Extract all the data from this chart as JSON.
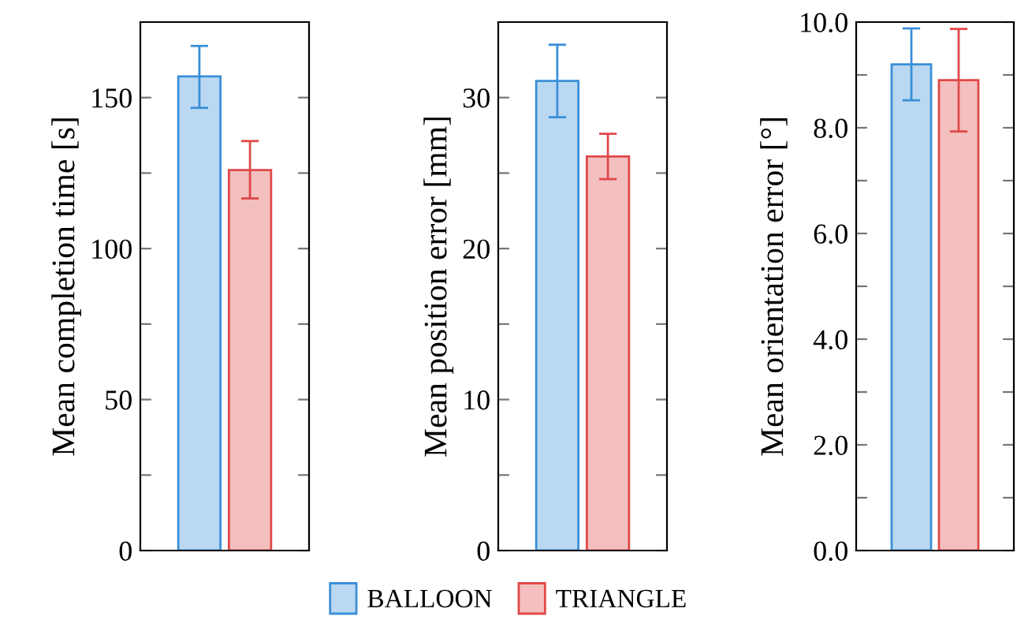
{
  "chart_data": [
    {
      "type": "bar",
      "ylabel": "Mean completion time [s]",
      "categories": [
        null
      ],
      "ylim": [
        0,
        175
      ],
      "yticks": [
        0,
        {
          "value": 25,
          "label": null
        },
        50,
        {
          "value": 75,
          "label": null
        },
        100,
        {
          "value": 125,
          "label": null
        },
        150
      ],
      "grid": false,
      "legend": "bottom",
      "series": [
        {
          "name": "BALLOON",
          "color": "#3a8fd8",
          "values": [
            157
          ],
          "errors": [
            [
              146.6,
              167.1
            ]
          ]
        },
        {
          "name": "TRIANGLE",
          "color": "#e04848",
          "values": [
            126
          ],
          "errors": [
            [
              116.6,
              135.6
            ]
          ]
        }
      ]
    },
    {
      "type": "bar",
      "ylabel": "Mean position error [mm]",
      "categories": [
        null
      ],
      "ylim": [
        0,
        35
      ],
      "yticks": [
        0,
        {
          "value": 5,
          "label": null
        },
        10,
        {
          "value": 15,
          "label": null
        },
        20,
        {
          "value": 25,
          "label": null
        },
        30
      ],
      "grid": false,
      "series": [
        {
          "color": "#3a8fd8",
          "values": [
            31.1
          ],
          "errors": [
            [
              28.7,
              33.5
            ]
          ]
        },
        {
          "color": "#e04848",
          "values": [
            26.1
          ],
          "errors": [
            [
              24.6,
              27.6
            ]
          ]
        }
      ]
    },
    {
      "type": "bar",
      "ylabel": "Mean orientation error [°]",
      "categories": [
        null
      ],
      "ylim": [
        0,
        10
      ],
      "yticks": [
        {
          "value": 0,
          "label": "0.0"
        },
        {
          "value": 1,
          "label": null
        },
        {
          "value": 2,
          "label": "2.0"
        },
        {
          "value": 3,
          "label": null
        },
        {
          "value": 4,
          "label": "4.0"
        },
        {
          "value": 5,
          "label": null
        },
        {
          "value": 6,
          "label": "6.0"
        },
        {
          "value": 7,
          "label": null
        },
        {
          "value": 8,
          "label": "8.0"
        },
        {
          "value": 9,
          "label": null
        },
        {
          "value": 10,
          "label": "10.0"
        }
      ],
      "grid": false,
      "series": [
        {
          "color": "#3a8fd8",
          "values": [
            9.2
          ],
          "errors": [
            [
              8.52,
              9.88
            ]
          ]
        },
        {
          "color": "#e04848",
          "values": [
            8.9
          ],
          "errors": [
            [
              7.93,
              9.87
            ]
          ]
        }
      ]
    }
  ]
}
